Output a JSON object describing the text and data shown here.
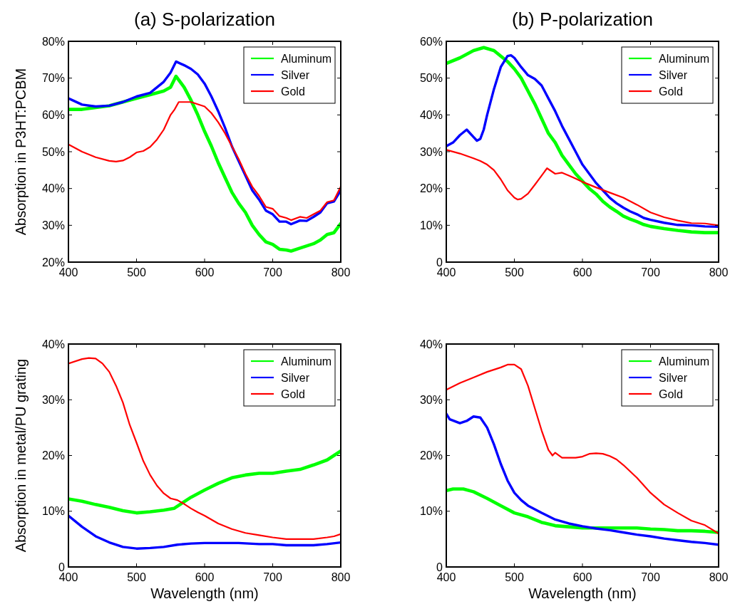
{
  "chart_data": [
    {
      "type": "line",
      "title": "(a) S-polarization",
      "ylabel": "Absorption in P3HT:PCBM",
      "xlim": [
        400,
        800
      ],
      "xticks": [
        400,
        500,
        600,
        700,
        800
      ],
      "ylim": [
        20,
        80
      ],
      "yticks": [
        {
          "value": 20,
          "label": "20%"
        },
        {
          "value": 30,
          "label": "30%"
        },
        {
          "value": 40,
          "label": "40%"
        },
        {
          "value": 50,
          "label": "50%"
        },
        {
          "value": 60,
          "label": "60%"
        },
        {
          "value": 70,
          "label": "70%"
        },
        {
          "value": 80,
          "label": "80%"
        }
      ],
      "legend": "top right",
      "series": [
        {
          "name": "Aluminum",
          "color": "#00ff00",
          "x": [
            400,
            420,
            440,
            460,
            480,
            500,
            520,
            540,
            550,
            558,
            570,
            580,
            590,
            600,
            610,
            620,
            630,
            640,
            650,
            660,
            670,
            680,
            690,
            700,
            710,
            720,
            727,
            740,
            760,
            770,
            780,
            790,
            800
          ],
          "values": [
            61.5,
            61.5,
            62,
            62.5,
            63.5,
            64.5,
            65.5,
            66.5,
            67.5,
            70.5,
            67.5,
            64,
            60,
            55.5,
            51.5,
            47,
            43,
            39,
            36,
            33.5,
            30,
            27.5,
            25.5,
            24.8,
            23.5,
            23.3,
            23,
            23.8,
            25,
            26,
            27.5,
            28,
            30.5
          ]
        },
        {
          "name": "Silver",
          "color": "#0000ff",
          "x": [
            400,
            420,
            440,
            460,
            480,
            500,
            520,
            540,
            550,
            558,
            570,
            580,
            590,
            600,
            610,
            620,
            630,
            640,
            650,
            660,
            670,
            680,
            690,
            700,
            710,
            720,
            727,
            740,
            750,
            760,
            770,
            780,
            790,
            800
          ],
          "values": [
            64.5,
            62.8,
            62.3,
            62.5,
            63.5,
            65,
            66,
            69,
            71.5,
            74.5,
            73.5,
            72.5,
            71,
            68.5,
            65,
            61,
            56.5,
            51.5,
            47.5,
            43.5,
            39.5,
            37,
            34,
            33,
            31,
            31,
            30.3,
            31.3,
            31.2,
            32.3,
            33.5,
            36,
            36.5,
            39.5
          ]
        },
        {
          "name": "Gold",
          "color": "#ff0000",
          "x": [
            400,
            420,
            440,
            460,
            470,
            480,
            490,
            500,
            510,
            520,
            530,
            540,
            550,
            556,
            562,
            580,
            600,
            610,
            620,
            630,
            640,
            650,
            660,
            670,
            680,
            690,
            700,
            710,
            720,
            727,
            740,
            750,
            760,
            770,
            780,
            790,
            800
          ],
          "values": [
            52,
            50,
            48.5,
            47.5,
            47.3,
            47.6,
            48.5,
            49.8,
            50.2,
            51.3,
            53.3,
            56,
            60,
            61.5,
            63.5,
            63.5,
            62.3,
            60.5,
            58,
            55,
            51.5,
            48,
            44,
            40.5,
            38,
            35,
            34.5,
            32.5,
            32,
            31.4,
            32.3,
            32,
            33,
            34,
            36.3,
            36.8,
            40.5
          ]
        }
      ]
    },
    {
      "type": "line",
      "title": "(b) P-polarization",
      "xlim": [
        400,
        800
      ],
      "xticks": [
        400,
        500,
        600,
        700,
        800
      ],
      "ylim": [
        0,
        60
      ],
      "yticks": [
        {
          "value": 0,
          "label": "0"
        },
        {
          "value": 10,
          "label": "10%"
        },
        {
          "value": 20,
          "label": "20%"
        },
        {
          "value": 30,
          "label": "30%"
        },
        {
          "value": 40,
          "label": "40%"
        },
        {
          "value": 50,
          "label": "50%"
        },
        {
          "value": 60,
          "label": "60%"
        }
      ],
      "legend": "top right",
      "series": [
        {
          "name": "Aluminum",
          "color": "#00ff00",
          "x": [
            400,
            420,
            440,
            455,
            470,
            480,
            490,
            500,
            510,
            520,
            530,
            540,
            550,
            560,
            570,
            580,
            590,
            600,
            610,
            620,
            630,
            640,
            650,
            660,
            670,
            680,
            690,
            700,
            720,
            740,
            760,
            780,
            800
          ],
          "values": [
            54,
            55.5,
            57.5,
            58.3,
            57.5,
            56,
            54.5,
            52.5,
            50,
            46.5,
            43,
            39,
            35,
            32.5,
            29,
            26.5,
            24,
            22,
            20,
            18.5,
            16.5,
            15,
            13.8,
            12.5,
            11.7,
            11,
            10.2,
            9.7,
            9.1,
            8.6,
            8.2,
            8,
            8
          ]
        },
        {
          "name": "Silver",
          "color": "#0000ff",
          "x": [
            400,
            410,
            420,
            430,
            440,
            445,
            450,
            455,
            460,
            470,
            480,
            490,
            495,
            500,
            510,
            520,
            530,
            540,
            550,
            560,
            570,
            580,
            590,
            600,
            610,
            620,
            630,
            640,
            650,
            660,
            670,
            680,
            690,
            700,
            720,
            740,
            760,
            780,
            800
          ],
          "values": [
            31.5,
            32.5,
            34.5,
            36,
            34,
            33,
            33.5,
            36,
            40,
            47,
            53,
            56,
            56.2,
            55.5,
            53,
            50.8,
            49.8,
            48,
            44.5,
            41,
            37,
            33.5,
            30,
            26.5,
            24,
            21.5,
            19.5,
            17.5,
            16,
            14.8,
            13.8,
            13,
            12,
            11.5,
            10.7,
            10.1,
            10,
            9.7,
            9.6
          ]
        },
        {
          "name": "Gold",
          "color": "#ff0000",
          "x": [
            400,
            420,
            440,
            450,
            460,
            470,
            480,
            490,
            500,
            505,
            510,
            520,
            530,
            540,
            548,
            560,
            570,
            580,
            590,
            600,
            620,
            640,
            660,
            680,
            700,
            720,
            740,
            760,
            780,
            800
          ],
          "values": [
            30.5,
            29.5,
            28.2,
            27.5,
            26.5,
            25,
            22.5,
            19.5,
            17.5,
            17,
            17.2,
            18.6,
            21,
            23.5,
            25.5,
            24,
            24.3,
            23.5,
            22.7,
            21.8,
            20.3,
            18.9,
            17.5,
            15.6,
            13.5,
            12.2,
            11.3,
            10.6,
            10.5,
            10
          ]
        }
      ]
    },
    {
      "type": "line",
      "ylabel": "Absorption in metal/PU grating",
      "xlabel": "Wavelength (nm)",
      "xlim": [
        400,
        800
      ],
      "xticks": [
        400,
        500,
        600,
        700,
        800
      ],
      "ylim": [
        0,
        40
      ],
      "yticks": [
        {
          "value": 0,
          "label": "0"
        },
        {
          "value": 10,
          "label": "10%"
        },
        {
          "value": 20,
          "label": "20%"
        },
        {
          "value": 30,
          "label": "30%"
        },
        {
          "value": 40,
          "label": "40%"
        }
      ],
      "legend": "top right",
      "series": [
        {
          "name": "Aluminum",
          "color": "#00ff00",
          "x": [
            400,
            420,
            440,
            460,
            480,
            500,
            520,
            540,
            555,
            570,
            580,
            600,
            620,
            640,
            660,
            680,
            700,
            720,
            740,
            760,
            780,
            800
          ],
          "values": [
            12.2,
            11.8,
            11.2,
            10.7,
            10.1,
            9.7,
            9.9,
            10.2,
            10.5,
            11.7,
            12.5,
            13.8,
            15,
            16,
            16.5,
            16.8,
            16.8,
            17.2,
            17.5,
            18.3,
            19.2,
            20.8
          ]
        },
        {
          "name": "Silver",
          "color": "#0000ff",
          "x": [
            400,
            420,
            440,
            460,
            480,
            500,
            520,
            540,
            560,
            580,
            600,
            650,
            680,
            700,
            720,
            760,
            780,
            800
          ],
          "values": [
            9.2,
            7.2,
            5.5,
            4.4,
            3.6,
            3.3,
            3.4,
            3.6,
            4,
            4.2,
            4.3,
            4.3,
            4.1,
            4.1,
            3.9,
            3.9,
            4.1,
            4.4
          ]
        },
        {
          "name": "Gold",
          "color": "#ff0000",
          "x": [
            400,
            420,
            430,
            440,
            450,
            460,
            470,
            480,
            490,
            500,
            510,
            520,
            530,
            540,
            550,
            560,
            570,
            580,
            590,
            600,
            620,
            640,
            660,
            680,
            700,
            720,
            760,
            780,
            790,
            800
          ],
          "values": [
            36.5,
            37.3,
            37.5,
            37.4,
            36.5,
            35,
            32.5,
            29.5,
            25.5,
            22.3,
            19,
            16.5,
            14.6,
            13.2,
            12.3,
            12,
            11.3,
            10.5,
            9.8,
            9.2,
            7.8,
            6.8,
            6.1,
            5.7,
            5.3,
            5,
            5,
            5.3,
            5.5,
            5.9
          ]
        }
      ]
    },
    {
      "type": "line",
      "xlabel": "Wavelength (nm)",
      "xlim": [
        400,
        800
      ],
      "xticks": [
        400,
        500,
        600,
        700,
        800
      ],
      "ylim": [
        0,
        40
      ],
      "yticks": [
        {
          "value": 0,
          "label": "0"
        },
        {
          "value": 10,
          "label": "10%"
        },
        {
          "value": 20,
          "label": "20%"
        },
        {
          "value": 30,
          "label": "30%"
        },
        {
          "value": 40,
          "label": "40%"
        }
      ],
      "legend": "top right",
      "series": [
        {
          "name": "Aluminum",
          "color": "#00ff00",
          "x": [
            400,
            410,
            425,
            440,
            460,
            480,
            500,
            520,
            540,
            560,
            580,
            600,
            620,
            650,
            680,
            700,
            720,
            740,
            760,
            780,
            800
          ],
          "values": [
            13.7,
            14,
            14,
            13.5,
            12.3,
            11,
            9.7,
            9,
            8,
            7.4,
            7.2,
            7,
            7,
            7,
            7,
            6.8,
            6.7,
            6.5,
            6.5,
            6.4,
            6.2
          ]
        },
        {
          "name": "Silver",
          "color": "#0000ff",
          "x": [
            400,
            405,
            420,
            430,
            440,
            450,
            460,
            470,
            480,
            490,
            500,
            510,
            520,
            540,
            560,
            580,
            600,
            620,
            640,
            660,
            680,
            700,
            720,
            740,
            760,
            780,
            800
          ],
          "values": [
            27.5,
            26.5,
            25.8,
            26.2,
            27,
            26.8,
            25,
            22,
            18.5,
            15.5,
            13.3,
            12,
            11,
            9.7,
            8.5,
            7.8,
            7.3,
            6.9,
            6.6,
            6.2,
            5.8,
            5.5,
            5.1,
            4.8,
            4.5,
            4.3,
            4
          ]
        },
        {
          "name": "Gold",
          "color": "#ff0000",
          "x": [
            400,
            420,
            440,
            460,
            480,
            490,
            500,
            510,
            520,
            530,
            540,
            550,
            556,
            560,
            570,
            590,
            600,
            610,
            620,
            630,
            640,
            650,
            660,
            680,
            700,
            720,
            740,
            760,
            780,
            800
          ],
          "values": [
            31.8,
            33,
            34,
            35,
            35.8,
            36.3,
            36.3,
            35.5,
            32.5,
            28.5,
            24.5,
            21,
            20,
            20.5,
            19.6,
            19.6,
            19.8,
            20.3,
            20.4,
            20.3,
            19.9,
            19.3,
            18.3,
            16,
            13.3,
            11.2,
            9.7,
            8.3,
            7.5,
            6
          ]
        }
      ]
    }
  ]
}
